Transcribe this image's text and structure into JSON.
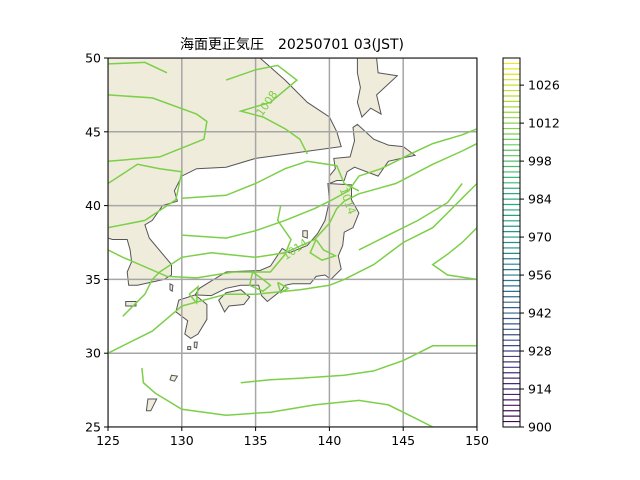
{
  "title": "海面更正気圧　20250701 03(JST)",
  "map": {
    "lon_range": [
      125,
      150
    ],
    "lat_range": [
      25,
      50
    ],
    "x_ticks": [
      125,
      130,
      135,
      140,
      145,
      150
    ],
    "y_ticks": [
      25,
      30,
      35,
      40,
      45,
      50
    ],
    "gridlines": true,
    "land_color": "#efecdc",
    "coast_color": "#555555",
    "contour_color": "#7ccf48",
    "contour_labels": [
      {
        "text": "1008",
        "lon": 135.8,
        "lat": 46.9,
        "angle": -55
      },
      {
        "text": "1014",
        "lon": 141.2,
        "lat": 40.3,
        "angle": 70
      },
      {
        "text": "1014",
        "lon": 137.7,
        "lat": 37.0,
        "angle": -35
      }
    ]
  },
  "colorbar": {
    "min": 900,
    "max": 1036,
    "step": 2,
    "tick_values": [
      900,
      914,
      928,
      942,
      956,
      970,
      984,
      998,
      1012,
      1026
    ],
    "tick_labels": [
      "900",
      "914",
      "928",
      "942",
      "956",
      "970",
      "984",
      "998",
      "1012",
      "1026"
    ],
    "colors": [
      "#440154",
      "#482878",
      "#3e4989",
      "#31688e",
      "#26828e",
      "#1f9e89",
      "#35b779",
      "#6ece58",
      "#b5de2b",
      "#fde725"
    ]
  }
}
